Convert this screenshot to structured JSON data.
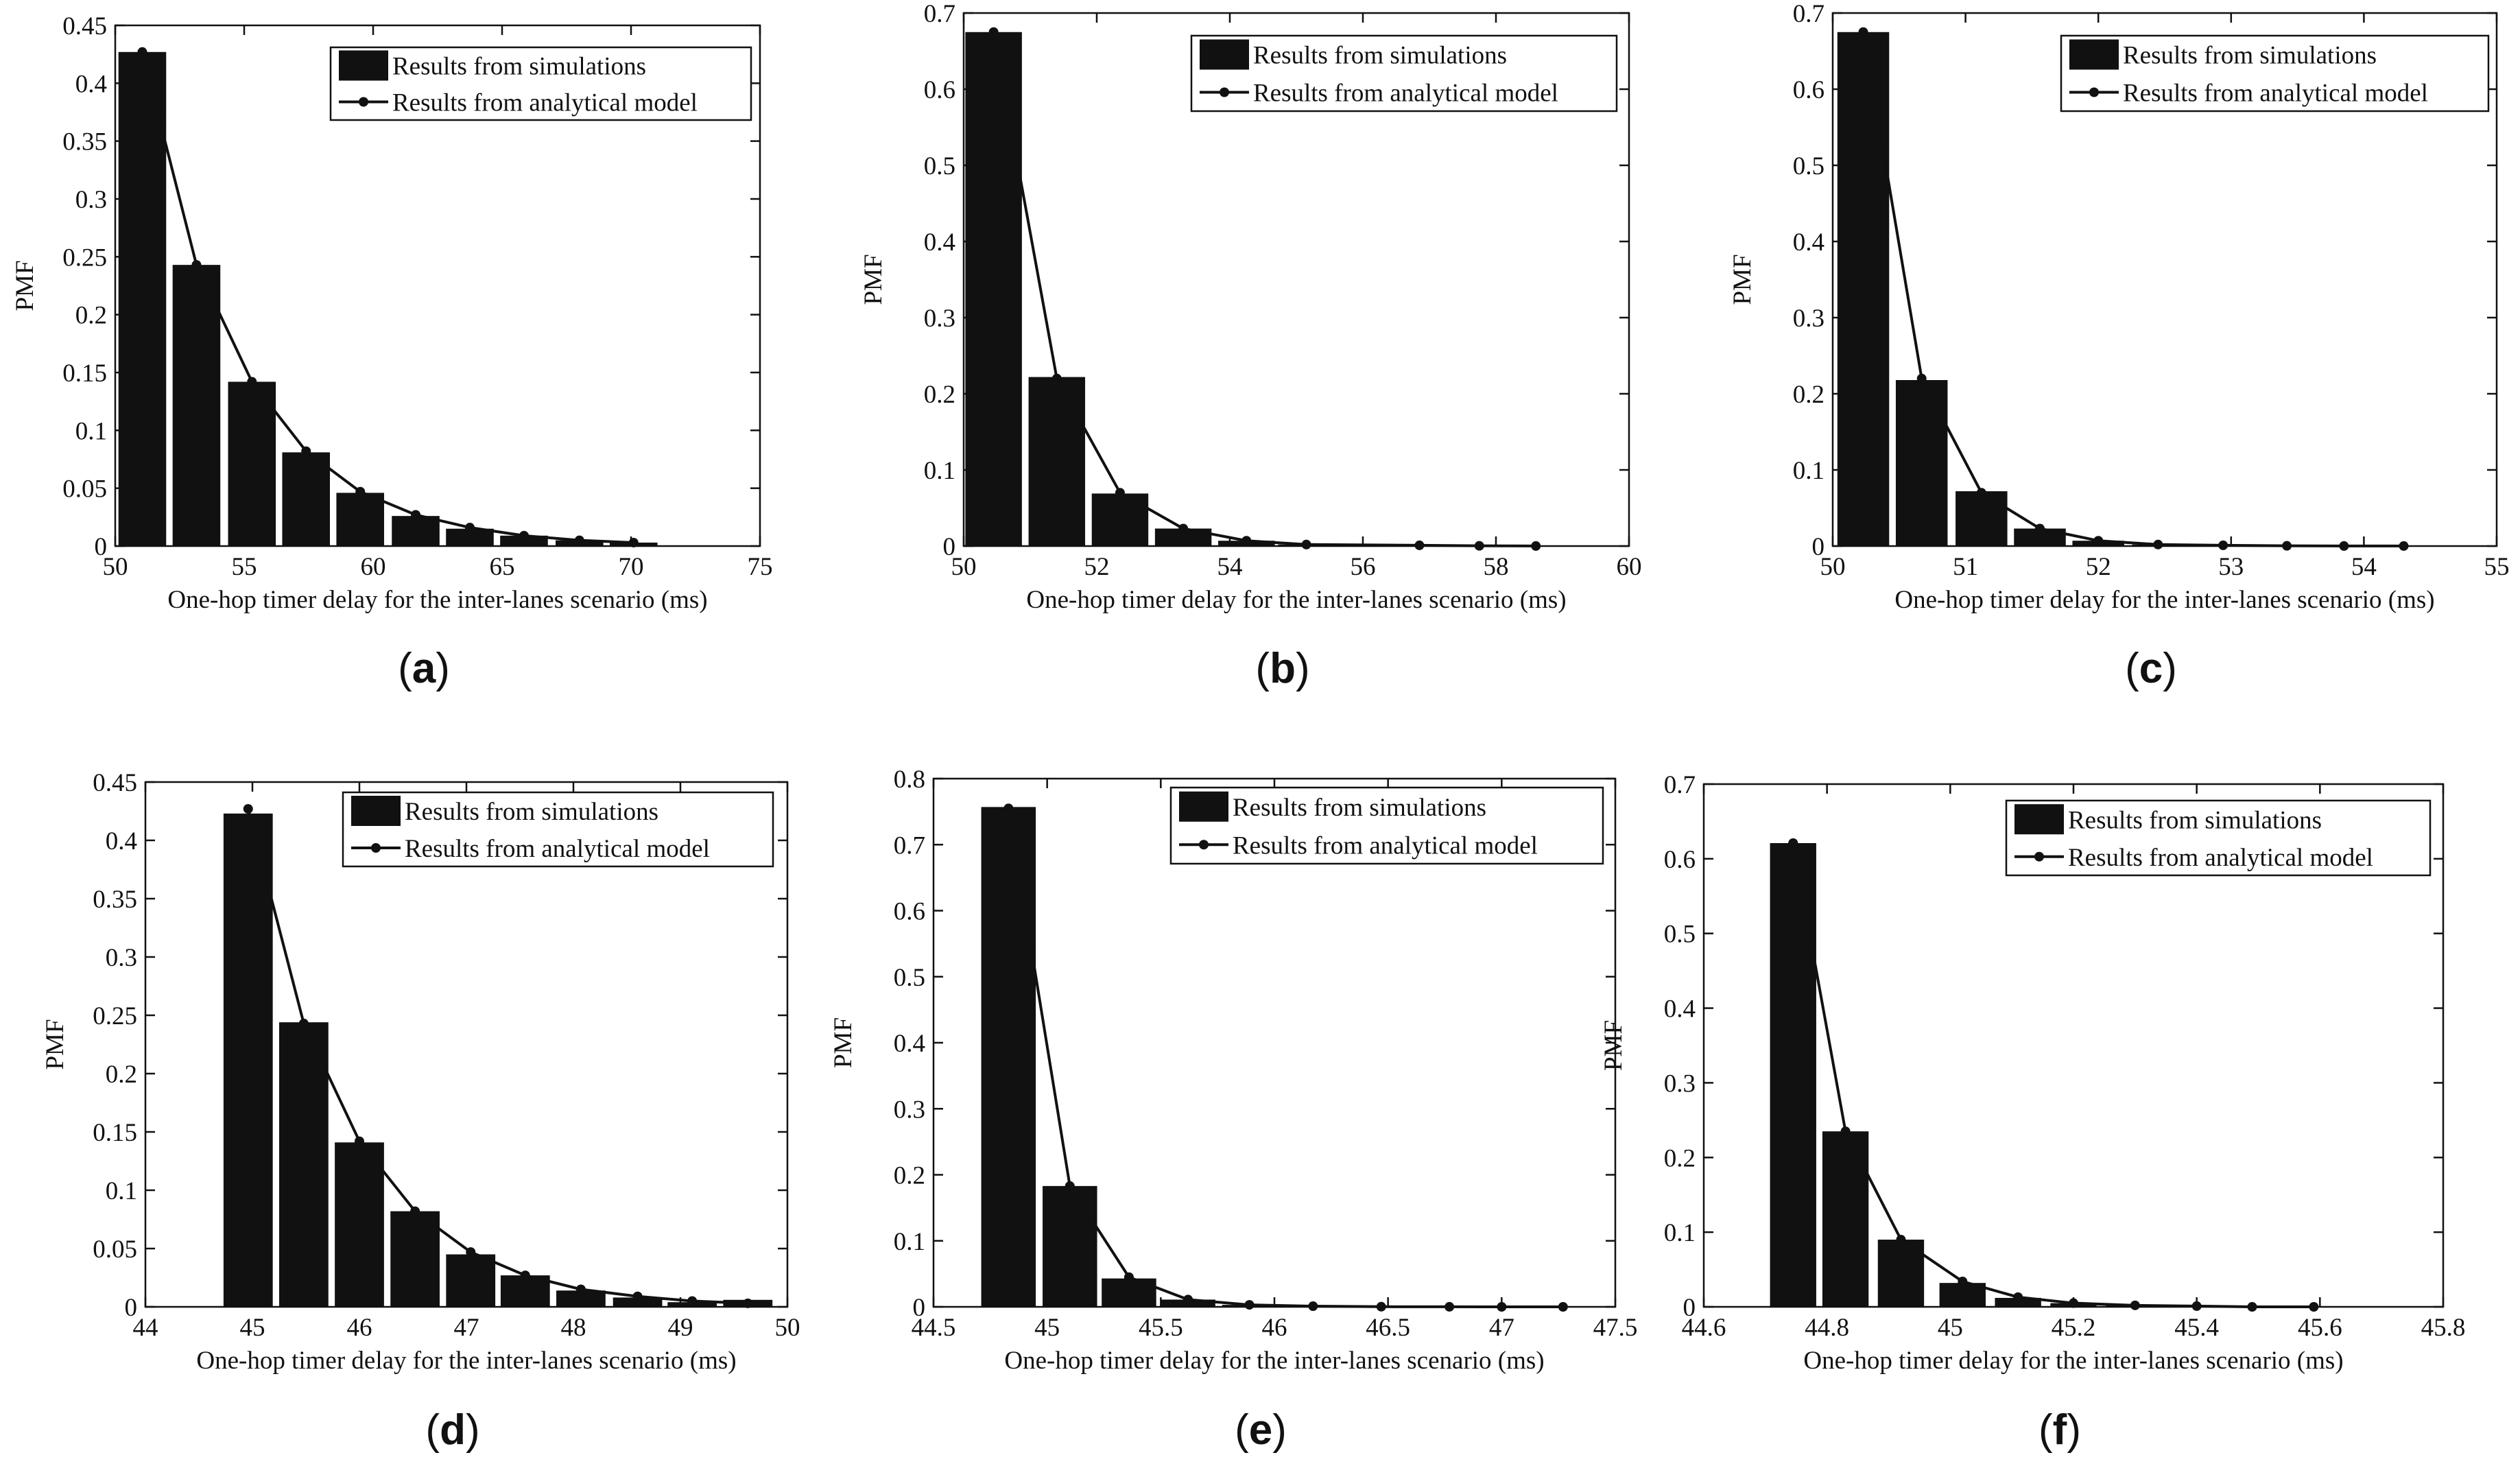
{
  "chart_data": [
    {
      "type": "bar",
      "panel_label": "(a)",
      "xlabel": "One-hop timer delay for the inter-lanes scenario (ms)",
      "ylabel": "PMF",
      "xlim": [
        50,
        75
      ],
      "ylim": [
        0,
        0.45
      ],
      "xticks": [
        50,
        55,
        60,
        65,
        70,
        75
      ],
      "yticks": [
        0,
        0.05,
        0.1,
        0.15,
        0.2,
        0.25,
        0.3,
        0.35,
        0.4,
        0.45
      ],
      "bar_width": 1.85,
      "legend_position": "top-right",
      "series": [
        {
          "name": "Results from simulations",
          "kind": "bar",
          "x": [
            51.05,
            53.15,
            55.3,
            57.4,
            59.5,
            61.65,
            63.75,
            65.85,
            68.0,
            70.1
          ],
          "values": [
            0.427,
            0.243,
            0.142,
            0.081,
            0.046,
            0.026,
            0.015,
            0.009,
            0.005,
            0.003
          ]
        },
        {
          "name": "Results from analytical model",
          "kind": "line",
          "x": [
            51.05,
            53.15,
            55.3,
            57.4,
            59.5,
            61.65,
            63.75,
            65.85,
            68.0,
            70.1
          ],
          "values": [
            0.427,
            0.243,
            0.142,
            0.082,
            0.047,
            0.027,
            0.016,
            0.009,
            0.005,
            0.003
          ]
        }
      ]
    },
    {
      "type": "bar",
      "panel_label": "(b)",
      "xlabel": "One-hop timer delay for the inter-lanes scenario (ms)",
      "ylabel": "PMF",
      "xlim": [
        50,
        60
      ],
      "ylim": [
        0,
        0.7
      ],
      "xticks": [
        50,
        52,
        54,
        56,
        58,
        60
      ],
      "yticks": [
        0,
        0.1,
        0.2,
        0.3,
        0.4,
        0.5,
        0.6,
        0.7
      ],
      "bar_width": 0.85,
      "legend_position": "top-right",
      "series": [
        {
          "name": "Results from simulations",
          "kind": "bar",
          "x": [
            50.45,
            51.4,
            52.35,
            53.3,
            54.25,
            55.15,
            56.1,
            57.05,
            58.0
          ],
          "values": [
            0.675,
            0.222,
            0.069,
            0.023,
            0.007,
            0.002,
            0.001,
            0.0003,
            0.0001
          ]
        },
        {
          "name": "Results from analytical model",
          "kind": "line",
          "x": [
            50.45,
            51.4,
            52.35,
            53.3,
            54.25,
            55.15,
            56.85,
            57.75,
            58.6
          ],
          "values": [
            0.675,
            0.22,
            0.07,
            0.023,
            0.007,
            0.002,
            0.001,
            0.0003,
            0.0001
          ]
        }
      ]
    },
    {
      "type": "bar",
      "panel_label": "(c)",
      "xlabel": "One-hop timer delay for the inter-lanes scenario (ms)",
      "ylabel": "PMF",
      "xlim": [
        50,
        55
      ],
      "ylim": [
        0,
        0.7
      ],
      "xticks": [
        50,
        51,
        52,
        53,
        54,
        55
      ],
      "yticks": [
        0,
        0.1,
        0.2,
        0.3,
        0.4,
        0.5,
        0.6,
        0.7
      ],
      "bar_width": 0.39,
      "legend_position": "top-right",
      "series": [
        {
          "name": "Results from simulations",
          "kind": "bar",
          "x": [
            50.23,
            50.67,
            51.12,
            51.56,
            52.0,
            52.45,
            52.9,
            53.35,
            53.8
          ],
          "values": [
            0.675,
            0.218,
            0.072,
            0.023,
            0.007,
            0.002,
            0.001,
            0.0003,
            0.0001
          ]
        },
        {
          "name": "Results from analytical model",
          "kind": "line",
          "x": [
            50.23,
            50.67,
            51.12,
            51.56,
            52.0,
            52.45,
            52.94,
            53.42,
            53.85,
            54.3
          ],
          "values": [
            0.675,
            0.22,
            0.07,
            0.023,
            0.007,
            0.002,
            0.001,
            0.0003,
            0.0001,
            0.0001
          ]
        }
      ]
    },
    {
      "type": "bar",
      "panel_label": "(d)",
      "xlabel": "One-hop timer delay for the inter-lanes scenario (ms)",
      "ylabel": "PMF",
      "xlim": [
        44,
        50
      ],
      "ylim": [
        0,
        0.45
      ],
      "xticks": [
        44,
        45,
        46,
        47,
        48,
        49,
        50
      ],
      "yticks": [
        0,
        0.05,
        0.1,
        0.15,
        0.2,
        0.25,
        0.3,
        0.35,
        0.4,
        0.45
      ],
      "bar_width": 0.46,
      "legend_position": "top-right",
      "series": [
        {
          "name": "Results from simulations",
          "kind": "bar",
          "x": [
            44.96,
            45.48,
            46.0,
            46.52,
            47.04,
            47.55,
            48.07,
            48.6,
            49.11,
            49.63
          ],
          "values": [
            0.423,
            0.244,
            0.141,
            0.082,
            0.045,
            0.027,
            0.014,
            0.008,
            0.004,
            0.006
          ]
        },
        {
          "name": "Results from analytical model",
          "kind": "line",
          "x": [
            44.96,
            45.48,
            46.0,
            46.52,
            47.04,
            47.55,
            48.07,
            48.6,
            49.11,
            49.63
          ],
          "values": [
            0.427,
            0.243,
            0.142,
            0.082,
            0.047,
            0.027,
            0.015,
            0.009,
            0.005,
            0.003
          ]
        }
      ]
    },
    {
      "type": "bar",
      "panel_label": "(e)",
      "xlabel": "One-hop timer delay for the inter-lanes scenario (ms)",
      "ylabel": "PMF",
      "xlim": [
        44.5,
        47.5
      ],
      "ylim": [
        0,
        0.8
      ],
      "xticks": [
        44.5,
        45,
        45.5,
        46,
        46.5,
        47,
        47.5
      ],
      "yticks": [
        0,
        0.1,
        0.2,
        0.3,
        0.4,
        0.5,
        0.6,
        0.7,
        0.8
      ],
      "bar_width": 0.24,
      "legend_position": "top-right",
      "series": [
        {
          "name": "Results from simulations",
          "kind": "bar",
          "x": [
            44.83,
            45.1,
            45.36,
            45.62,
            45.89
          ],
          "values": [
            0.757,
            0.183,
            0.043,
            0.011,
            0.003
          ]
        },
        {
          "name": "Results from analytical model",
          "kind": "line",
          "x": [
            44.83,
            45.1,
            45.36,
            45.62,
            45.89,
            46.17,
            46.47,
            46.77,
            47.0,
            47.27
          ],
          "values": [
            0.755,
            0.183,
            0.045,
            0.011,
            0.003,
            0.001,
            0.0002,
            0.0001,
            0.0,
            0.0
          ]
        }
      ]
    },
    {
      "type": "bar",
      "panel_label": "(f)",
      "xlabel": "One-hop timer delay for the inter-lanes scenario (ms)",
      "ylabel": "PMF",
      "xlim": [
        44.6,
        45.8
      ],
      "ylim": [
        0,
        0.7
      ],
      "xticks": [
        44.6,
        44.8,
        45,
        45.2,
        45.4,
        45.6,
        45.8
      ],
      "yticks": [
        0,
        0.1,
        0.2,
        0.3,
        0.4,
        0.5,
        0.6,
        0.7
      ],
      "bar_width": 0.075,
      "legend_position": "top-right",
      "series": [
        {
          "name": "Results from simulations",
          "kind": "bar",
          "x": [
            44.745,
            44.83,
            44.92,
            45.02,
            45.11,
            45.2,
            45.29
          ],
          "values": [
            0.621,
            0.235,
            0.09,
            0.032,
            0.012,
            0.005,
            0.002
          ]
        },
        {
          "name": "Results from analytical model",
          "kind": "line",
          "x": [
            44.745,
            44.83,
            44.92,
            45.02,
            45.11,
            45.2,
            45.3,
            45.4,
            45.49,
            45.59
          ],
          "values": [
            0.621,
            0.235,
            0.09,
            0.034,
            0.013,
            0.005,
            0.002,
            0.001,
            0.0,
            0.0
          ]
        }
      ]
    }
  ]
}
